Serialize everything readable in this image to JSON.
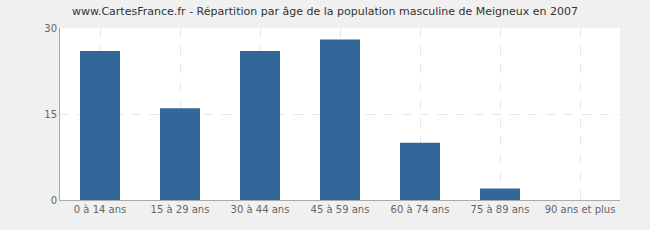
{
  "chart_data": {
    "type": "bar",
    "title": "www.CartesFrance.fr - Répartition par âge de la population masculine de Meigneux en 2007",
    "categories": [
      "0 à 14 ans",
      "15 à 29 ans",
      "30 à 44 ans",
      "45 à 59 ans",
      "60 à 74 ans",
      "75 à 89 ans",
      "90 ans et plus"
    ],
    "values": [
      26,
      16,
      26,
      28,
      10,
      2,
      0
    ],
    "color": "#336699",
    "ylim": [
      0,
      30
    ],
    "yticks": [
      0,
      15,
      30
    ],
    "grid": true
  }
}
